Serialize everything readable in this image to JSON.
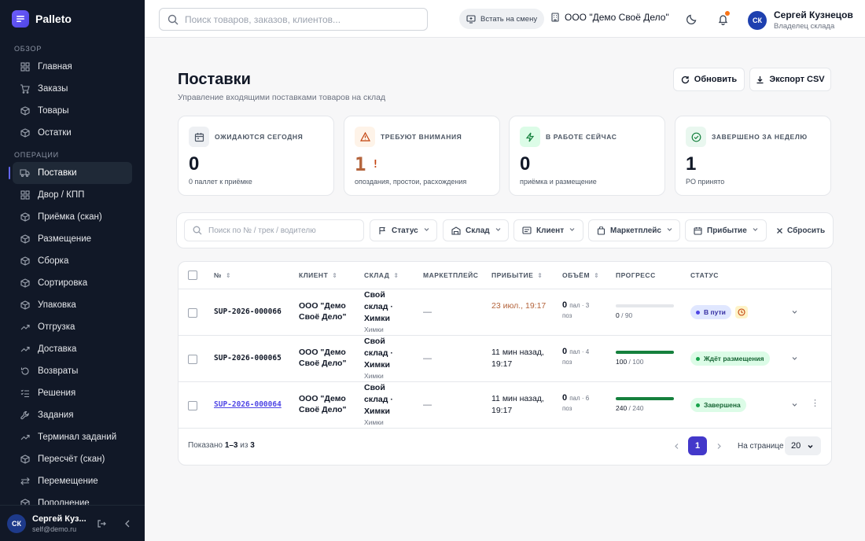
{
  "app": {
    "name": "Palleto"
  },
  "sidebar": {
    "sections": [
      {
        "title": "ОБЗОР",
        "items": [
          {
            "label": "Главная",
            "icon": "grid-icon"
          },
          {
            "label": "Заказы",
            "icon": "cart-icon"
          },
          {
            "label": "Товары",
            "icon": "box-icon"
          },
          {
            "label": "Остатки",
            "icon": "box-icon"
          }
        ]
      },
      {
        "title": "ОПЕРАЦИИ",
        "items": [
          {
            "label": "Поставки",
            "icon": "truck-icon",
            "active": true
          },
          {
            "label": "Двор / КПП",
            "icon": "grid-icon"
          },
          {
            "label": "Приёмка (скан)",
            "icon": "box-icon"
          },
          {
            "label": "Размещение",
            "icon": "box-icon"
          },
          {
            "label": "Сборка",
            "icon": "box-icon"
          },
          {
            "label": "Сортировка",
            "icon": "box-icon"
          },
          {
            "label": "Упаковка",
            "icon": "box-icon"
          },
          {
            "label": "Отгрузка",
            "icon": "trend-icon"
          },
          {
            "label": "Доставка",
            "icon": "trend-icon"
          },
          {
            "label": "Возвраты",
            "icon": "return-icon"
          },
          {
            "label": "Решения",
            "icon": "list-icon"
          },
          {
            "label": "Задания",
            "icon": "wrench-icon"
          },
          {
            "label": "Терминал заданий",
            "icon": "trend-icon"
          },
          {
            "label": "Пересчёт (скан)",
            "icon": "box-icon"
          },
          {
            "label": "Перемещение",
            "icon": "swap-icon"
          },
          {
            "label": "Пополнение",
            "icon": "box-icon"
          }
        ]
      }
    ],
    "footer": {
      "initials": "СК",
      "name": "Сергей Куз...",
      "email": "self@demo.ru"
    }
  },
  "topbar": {
    "search_placeholder": "Поиск товаров, заказов, клиентов...",
    "shift_label": "Встать на смену",
    "org_name": "ООО \"Демо Своё Дело\"",
    "user": {
      "initials": "СК",
      "name": "Сергей Кузнецов",
      "role": "Владелец склада"
    }
  },
  "page": {
    "title": "Поставки",
    "subtitle": "Управление входящими поставками товаров на склад",
    "refresh_label": "Обновить",
    "export_label": "Экспорт CSV"
  },
  "stats": [
    {
      "label": "ОЖИДАЮТСЯ СЕГОДНЯ",
      "value": "0",
      "desc": "0 паллет к приёмке",
      "icon": "calendar-icon",
      "color": "#111827",
      "bg": "#eef0f3",
      "iconColor": "#4b5563"
    },
    {
      "label": "ТРЕБУЮТ ВНИМАНИЯ",
      "value": "1",
      "extra": "!",
      "desc": "опоздания, простои, расхождения",
      "icon": "warning-icon",
      "color": "#b4643c",
      "bg": "#fef3e8",
      "iconColor": "#c2410c"
    },
    {
      "label": "В РАБОТЕ СЕЙЧАС",
      "value": "0",
      "desc": "приёмка и размещение",
      "icon": "bolt-icon",
      "color": "#111827",
      "bg": "#dcfce7",
      "iconColor": "#15803d"
    },
    {
      "label": "ЗАВЕРШЕНО ЗА НЕДЕЛЮ",
      "value": "1",
      "desc": "PO принято",
      "icon": "check-circle-icon",
      "color": "#111827",
      "bg": "#e9f7ef",
      "iconColor": "#15803d"
    }
  ],
  "filters": {
    "search_placeholder": "Поиск по № / трек / водителю",
    "status": "Статус",
    "warehouse": "Склад",
    "client": "Клиент",
    "marketplace": "Маркетплейс",
    "arrival": "Прибытие",
    "reset": "Сбросить"
  },
  "table": {
    "columns": [
      "№",
      "КЛИЕНТ",
      "СКЛАД",
      "МАРКЕТПЛЕЙС",
      "ПРИБЫТИЕ",
      "ОБЪЁМ",
      "ПРОГРЕСС",
      "СТАТУС"
    ],
    "rows": [
      {
        "number": "SUP-2026-000066",
        "client": "ООО \"Демо Своё Дело\"",
        "warehouse": "Свой склад · Химки",
        "city": "Химки",
        "marketplace": "—",
        "arrival": "23 июл., 19:17",
        "arrival_color": "#b4643c",
        "vol_main": "0",
        "vol_unit": "пал · 3",
        "vol_sub": "поз",
        "progress_done": 0,
        "progress_total": 90,
        "progress_text": "0",
        "progress_total_text": "90",
        "status": "В пути",
        "status_bg": "#e0e7ff",
        "status_color": "#3730a3",
        "status_dot": "#4f46e5",
        "alert": true,
        "link": false
      },
      {
        "number": "SUP-2026-000065",
        "client": "ООО \"Демо Своё Дело\"",
        "warehouse": "Свой склад · Химки",
        "city": "Химки",
        "marketplace": "—",
        "arrival": "11 мин назад, 19:17",
        "arrival_color": "#111827",
        "vol_main": "0",
        "vol_unit": "пал · 4",
        "vol_sub": "поз",
        "progress_done": 100,
        "progress_total": 100,
        "progress_text": "100",
        "progress_total_text": "100",
        "status": "Ждёт размещения",
        "status_bg": "#dcfce7",
        "status_color": "#166534",
        "status_dot": "#16a34a",
        "alert": false,
        "link": false
      },
      {
        "number": "SUP-2026-000064",
        "client": "ООО \"Демо Своё Дело\"",
        "warehouse": "Свой склад · Химки",
        "city": "Химки",
        "marketplace": "—",
        "arrival": "11 мин назад, 19:17",
        "arrival_color": "#111827",
        "vol_main": "0",
        "vol_unit": "пал · 6",
        "vol_sub": "поз",
        "progress_done": 240,
        "progress_total": 240,
        "progress_text": "240",
        "progress_total_text": "240",
        "status": "Завершена",
        "status_bg": "#dcfce7",
        "status_color": "#166534",
        "status_dot": "#16a34a",
        "alert": false,
        "link": true
      }
    ]
  },
  "pagination": {
    "shown_prefix": "Показано",
    "range": "1–3",
    "of": "из",
    "total": "3",
    "current_page": "1",
    "per_page_label": "На странице",
    "per_page": "20"
  }
}
